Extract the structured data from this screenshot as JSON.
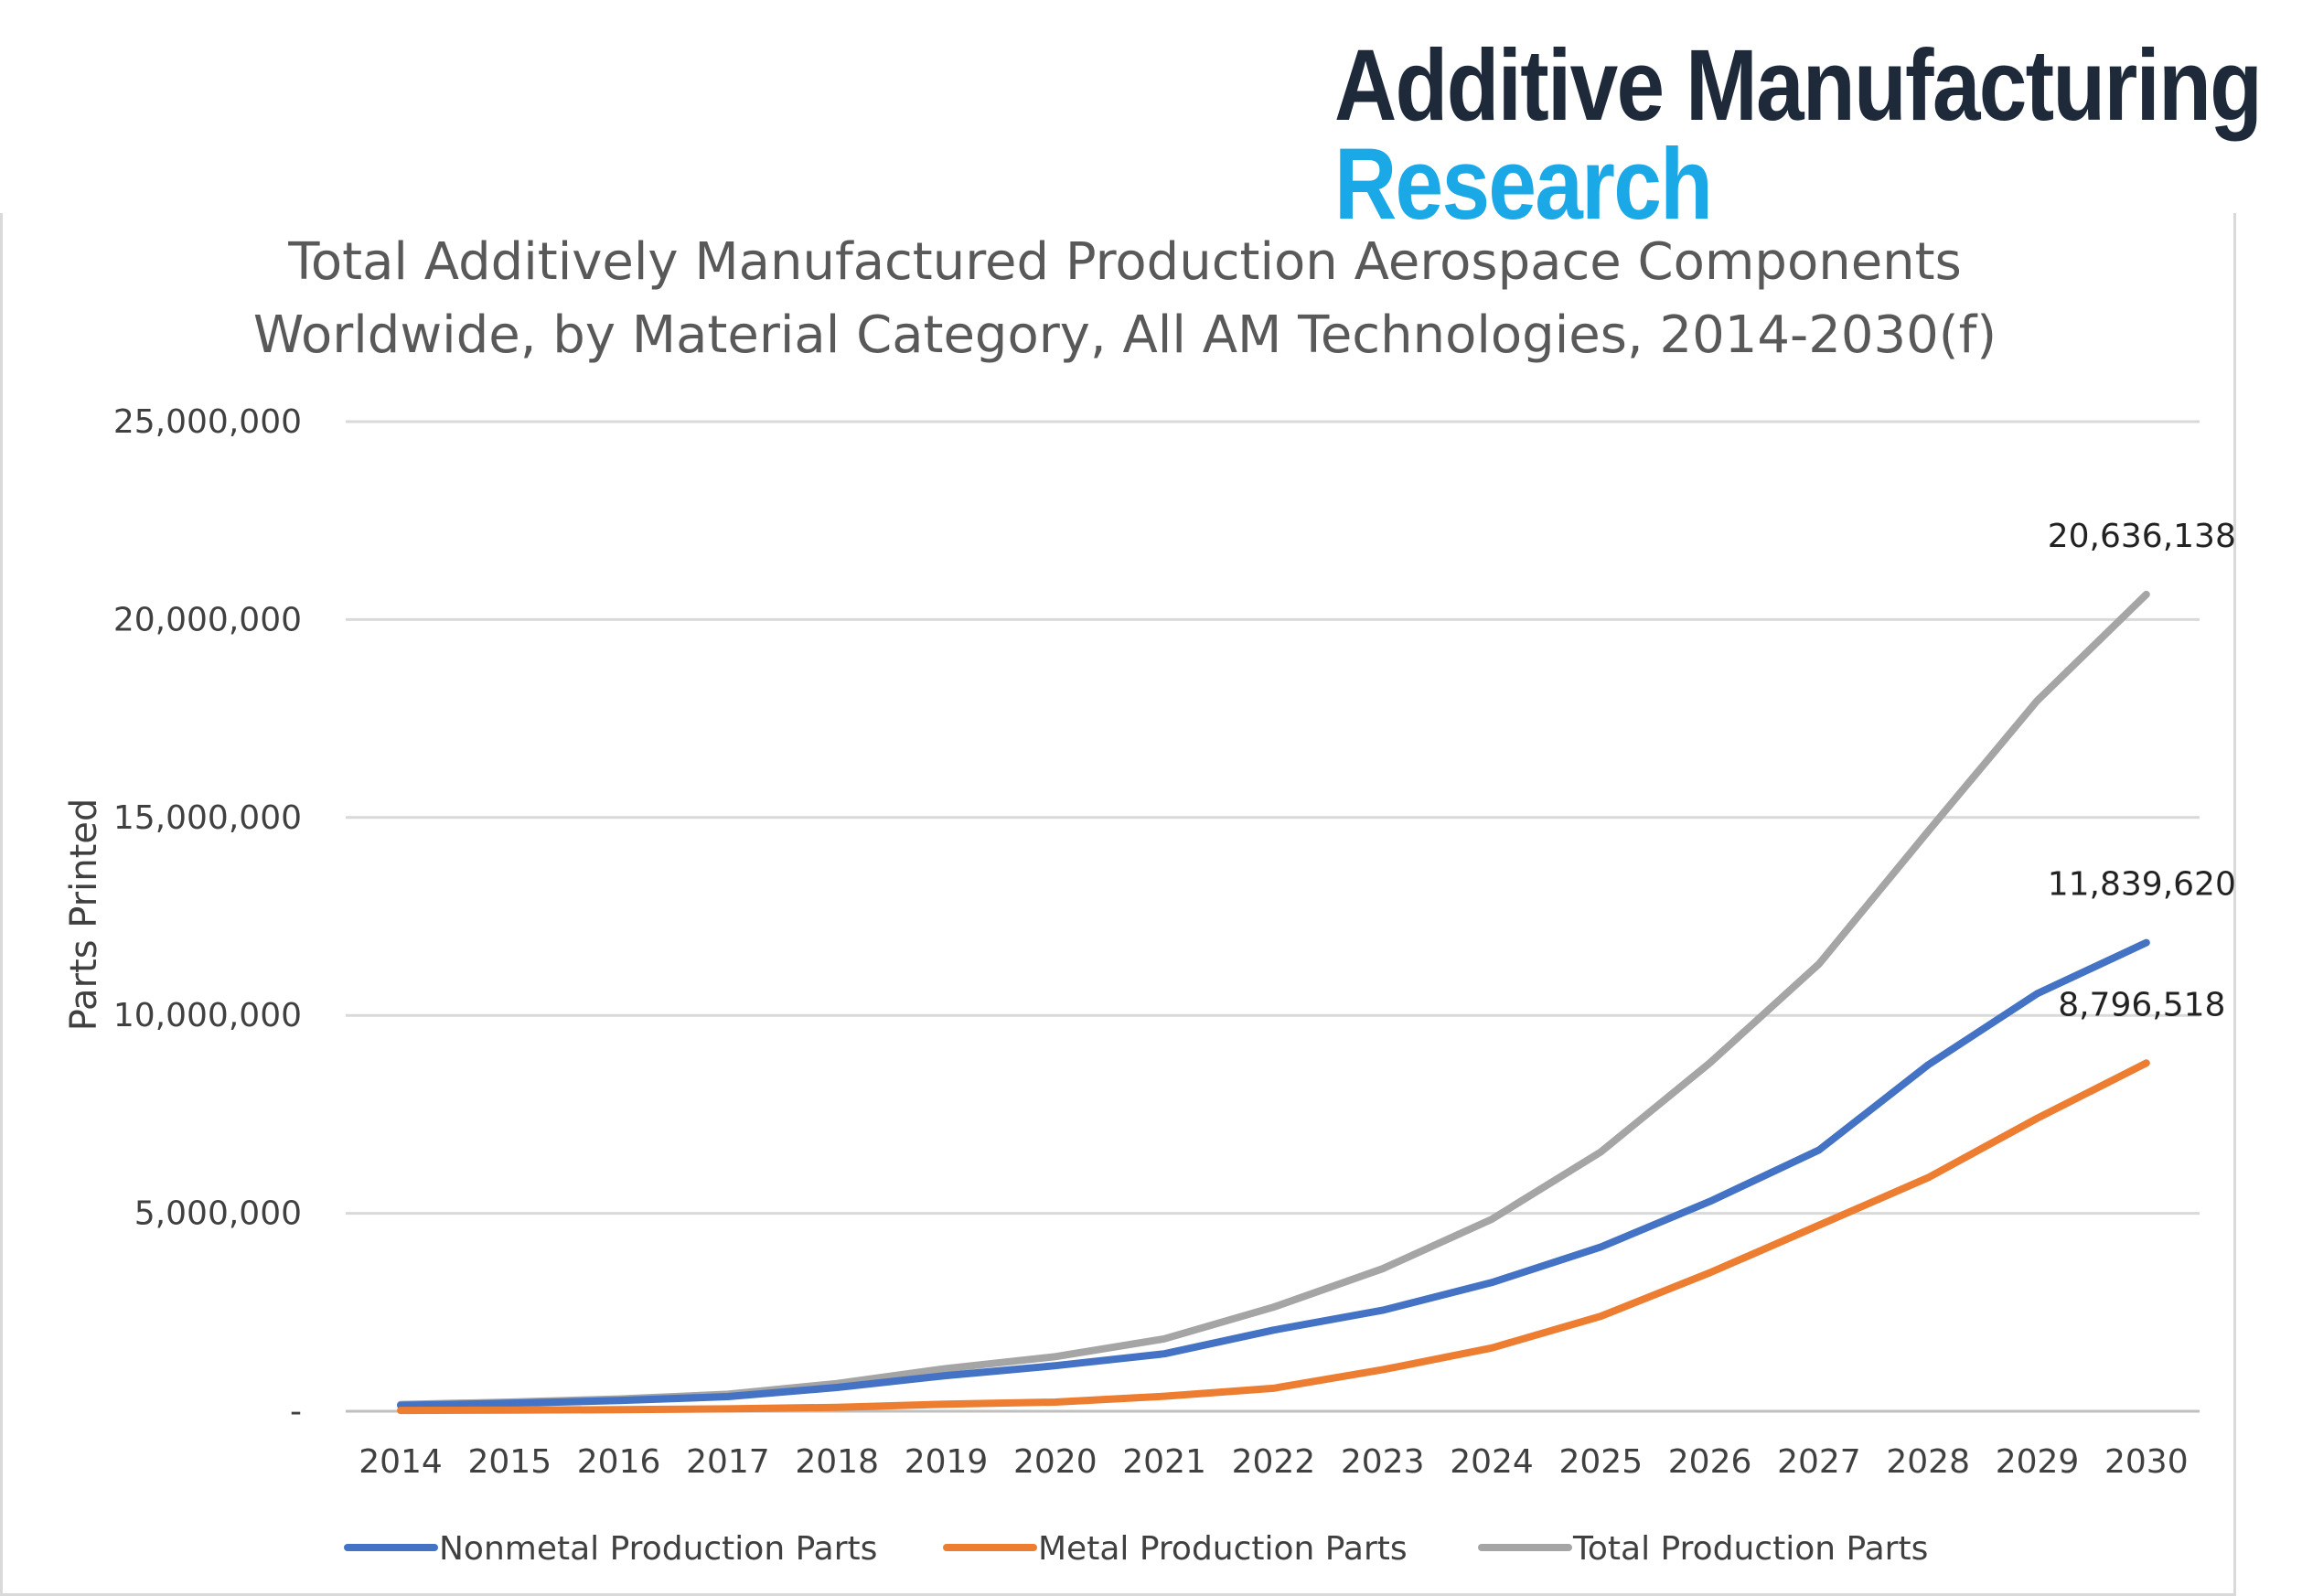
{
  "brand": {
    "line1": "Additive Manufacturing",
    "line2": "Research"
  },
  "chart_data": {
    "type": "line",
    "title_lines": [
      "Total Additively Manufactured Production Aerospace Components",
      "Worldwide, by Material Category, All AM Technologies, 2014-2030(f)"
    ],
    "ylabel": "Parts Printed",
    "xlabel": "",
    "ylim": [
      0,
      25000000
    ],
    "yticks": [
      0,
      5000000,
      10000000,
      15000000,
      20000000,
      25000000
    ],
    "ytick_labels": [
      "-",
      "5,000,000",
      "10,000,000",
      "15,000,000",
      "20,000,000",
      "25,000,000"
    ],
    "categories": [
      "2014",
      "2015",
      "2016",
      "2017",
      "2018",
      "2019",
      "2020",
      "2021",
      "2022",
      "2023",
      "2024",
      "2025",
      "2026",
      "2027",
      "2028",
      "2029",
      "2030"
    ],
    "grid": true,
    "legend_position": "bottom",
    "series": [
      {
        "name": "Nonmetal Production Parts",
        "color": "#4472c4",
        "values": [
          150000,
          200000,
          270000,
          370000,
          600000,
          900000,
          1150000,
          1450000,
          2050000,
          2550000,
          3250000,
          4150000,
          5300000,
          6600000,
          8750000,
          10550000,
          11839620
        ]
      },
      {
        "name": "Metal Production Parts",
        "color": "#ed7d31",
        "values": [
          20000,
          30000,
          40000,
          60000,
          100000,
          180000,
          230000,
          380000,
          580000,
          1050000,
          1600000,
          2400000,
          3500000,
          4700000,
          5900000,
          7400000,
          8796518
        ]
      },
      {
        "name": "Total Production Parts",
        "color": "#a5a5a5",
        "values": [
          170000,
          230000,
          310000,
          430000,
          700000,
          1080000,
          1380000,
          1830000,
          2630000,
          3600000,
          4850000,
          6550000,
          8800000,
          11300000,
          14650000,
          17950000,
          20636138
        ]
      }
    ],
    "annotations": [
      {
        "series": "Total Production Parts",
        "category": "2030",
        "text": "20,636,138"
      },
      {
        "series": "Nonmetal Production Parts",
        "category": "2030",
        "text": "11,839,620"
      },
      {
        "series": "Metal Production Parts",
        "category": "2030",
        "text": "8,796,518"
      }
    ]
  }
}
